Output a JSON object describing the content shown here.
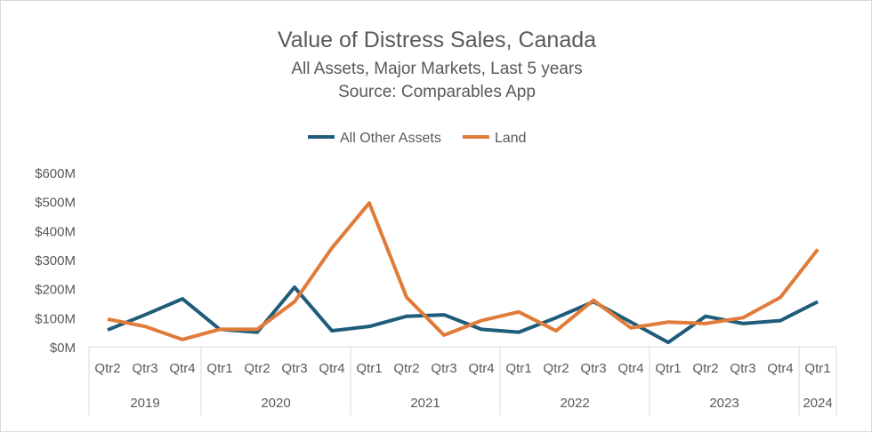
{
  "chart_data": {
    "type": "line",
    "title": "Value of Distress Sales, Canada",
    "subtitle": "All Assets, Major Markets, Last 5 years",
    "source": "Source: Comparables App",
    "categories": [
      "Qtr2",
      "Qtr3",
      "Qtr4",
      "Qtr1",
      "Qtr2",
      "Qtr3",
      "Qtr4",
      "Qtr1",
      "Qtr2",
      "Qtr3",
      "Qtr4",
      "Qtr1",
      "Qtr2",
      "Qtr3",
      "Qtr4",
      "Qtr1",
      "Qtr2",
      "Qtr3",
      "Qtr4",
      "Qtr1"
    ],
    "years": [
      {
        "label": "2019",
        "count": 3
      },
      {
        "label": "2020",
        "count": 4
      },
      {
        "label": "2021",
        "count": 4
      },
      {
        "label": "2022",
        "count": 4
      },
      {
        "label": "2023",
        "count": 4
      },
      {
        "label": "2024",
        "count": 1
      }
    ],
    "yticks": [
      "$0M",
      "$100M",
      "$200M",
      "$300M",
      "$400M",
      "$500M",
      "$600M"
    ],
    "ylim": [
      0,
      600
    ],
    "yunit": "$M",
    "legend_position": "top",
    "grid": false,
    "series": [
      {
        "name": "All Other Assets",
        "color": "#1f5c7a",
        "values": [
          58,
          110,
          165,
          60,
          50,
          205,
          55,
          70,
          105,
          110,
          60,
          50,
          100,
          155,
          85,
          15,
          105,
          80,
          90,
          155
        ]
      },
      {
        "name": "Land",
        "color": "#e07b39",
        "values": [
          95,
          70,
          25,
          60,
          60,
          155,
          340,
          495,
          170,
          40,
          90,
          120,
          55,
          160,
          65,
          85,
          80,
          100,
          170,
          335
        ]
      }
    ]
  }
}
